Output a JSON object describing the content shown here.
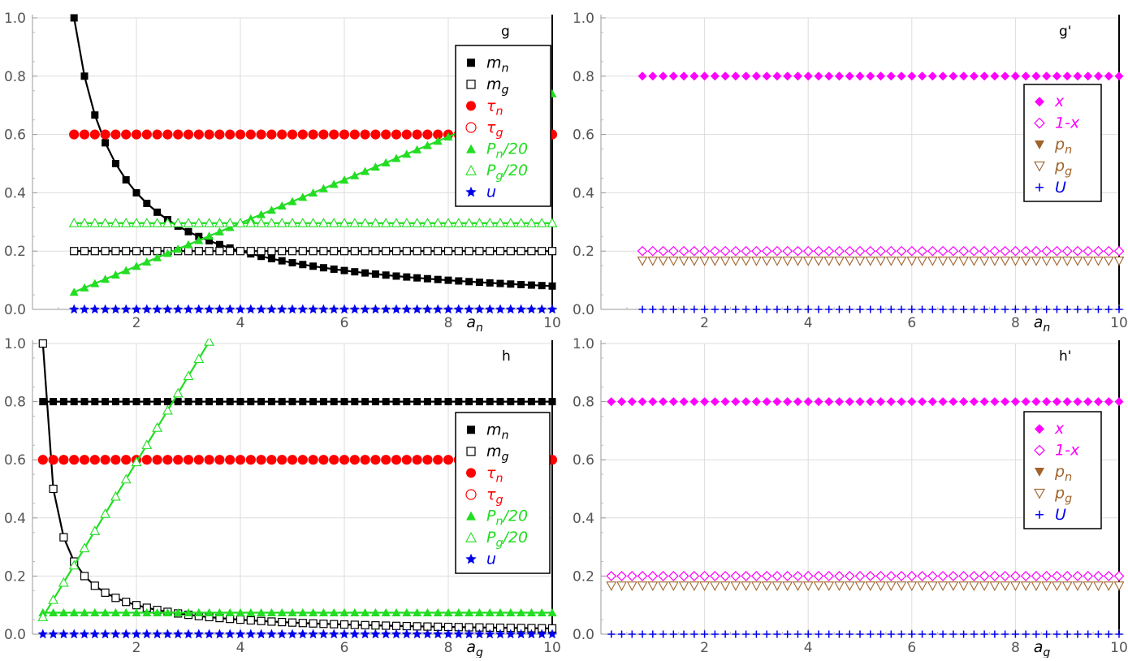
{
  "colors": {
    "black": "#000000",
    "red": "#ff0000",
    "green": "#22dd22",
    "blue": "#0000ee",
    "magenta": "#ff00ff",
    "brown": "#a0632c",
    "grid": "#dddddd"
  },
  "chart_data": [
    {
      "type": "scatter",
      "title": "g",
      "xlabel": "a_n",
      "xlim": [
        0,
        10
      ],
      "ylim": [
        0,
        1
      ],
      "xticks": [
        2,
        4,
        6,
        8,
        10
      ],
      "yticks": [
        0.0,
        0.2,
        0.4,
        0.6,
        0.8,
        1.0
      ],
      "grid": true,
      "legend_position": "top-right",
      "series": [
        {
          "name": "m_n",
          "marker": "filled-square",
          "color": "black",
          "x_start": 0.8,
          "x_end": 10,
          "x_step": 0.2,
          "formula": "0.8/x",
          "line": true
        },
        {
          "name": "m_g",
          "marker": "open-square",
          "color": "black",
          "x_start": 0.8,
          "x_end": 10,
          "x_step": 0.2,
          "formula": "0.2",
          "line": true
        },
        {
          "name": "τ_n",
          "marker": "filled-circle",
          "color": "red",
          "x_start": 0.8,
          "x_end": 10,
          "x_step": 0.2,
          "formula": "0.6"
        },
        {
          "name": "τ_g",
          "marker": "open-circle",
          "color": "red",
          "x_start": 0.8,
          "x_end": 10,
          "x_step": 0.2,
          "formula": "0.6"
        },
        {
          "name": "P_n/20",
          "marker": "filled-triangle",
          "color": "green",
          "x_start": 0.8,
          "x_end": 10,
          "x_step": 0.2,
          "formula": "0.074*x",
          "line": true
        },
        {
          "name": "P_g/20",
          "marker": "open-triangle",
          "color": "green",
          "x_start": 0.8,
          "x_end": 10,
          "x_step": 0.2,
          "formula": "0.296",
          "line": true
        },
        {
          "name": "u",
          "marker": "star",
          "color": "blue",
          "x_start": 0.8,
          "x_end": 10,
          "x_step": 0.2,
          "formula": "0"
        }
      ]
    },
    {
      "type": "scatter",
      "title": "g'",
      "xlabel": "a_n",
      "xlim": [
        0,
        10
      ],
      "ylim": [
        0,
        1
      ],
      "xticks": [
        2,
        4,
        6,
        8,
        10
      ],
      "yticks": [
        0.0,
        0.2,
        0.4,
        0.6,
        0.8,
        1.0
      ],
      "grid": true,
      "legend_position": "top-right",
      "series": [
        {
          "name": "x",
          "marker": "filled-diamond",
          "color": "magenta",
          "x_start": 0.8,
          "x_end": 10,
          "x_step": 0.2,
          "formula": "0.8"
        },
        {
          "name": "1-x",
          "marker": "open-diamond",
          "color": "magenta",
          "x_start": 0.8,
          "x_end": 10,
          "x_step": 0.2,
          "formula": "0.2"
        },
        {
          "name": "p_n",
          "marker": "filled-down-triangle",
          "color": "brown",
          "x_start": 0.8,
          "x_end": 10,
          "x_step": 0.2,
          "formula": "0.167"
        },
        {
          "name": "p_g",
          "marker": "open-down-triangle",
          "color": "brown",
          "x_start": 0.8,
          "x_end": 10,
          "x_step": 0.2,
          "formula": "0.167"
        },
        {
          "name": "U",
          "marker": "plus",
          "color": "blue",
          "x_start": 0.8,
          "x_end": 10,
          "x_step": 0.2,
          "formula": "0"
        }
      ]
    },
    {
      "type": "scatter",
      "title": "h",
      "xlabel": "a_g",
      "xlim": [
        0,
        10
      ],
      "ylim": [
        0,
        1
      ],
      "xticks": [
        2,
        4,
        6,
        8,
        10
      ],
      "yticks": [
        0.0,
        0.2,
        0.4,
        0.6,
        0.8,
        1.0
      ],
      "grid": true,
      "legend_position": "right",
      "series": [
        {
          "name": "m_n",
          "marker": "filled-square",
          "color": "black",
          "x_start": 0.2,
          "x_end": 10,
          "x_step": 0.2,
          "formula": "0.8",
          "line": true
        },
        {
          "name": "m_g",
          "marker": "open-square",
          "color": "black",
          "x_start": 0.2,
          "x_end": 10,
          "x_step": 0.2,
          "formula": "0.2/x",
          "line": true
        },
        {
          "name": "τ_n",
          "marker": "filled-circle",
          "color": "red",
          "x_start": 0.2,
          "x_end": 10,
          "x_step": 0.2,
          "formula": "0.6"
        },
        {
          "name": "τ_g",
          "marker": "open-circle",
          "color": "red",
          "x_start": 0.2,
          "x_end": 10,
          "x_step": 0.2,
          "formula": "0.6"
        },
        {
          "name": "P_n/20",
          "marker": "filled-triangle",
          "color": "green",
          "x_start": 0.2,
          "x_end": 10,
          "x_step": 0.2,
          "formula": "0.074",
          "line": true
        },
        {
          "name": "P_g/20",
          "marker": "open-triangle",
          "color": "green",
          "x_start": 0.2,
          "x_end": 10,
          "x_step": 0.2,
          "formula": "0.296*x",
          "line": true
        },
        {
          "name": "u",
          "marker": "star",
          "color": "blue",
          "x_start": 0.2,
          "x_end": 10,
          "x_step": 0.2,
          "formula": "0"
        }
      ]
    },
    {
      "type": "scatter",
      "title": "h'",
      "xlabel": "a_g",
      "xlim": [
        0,
        10
      ],
      "ylim": [
        0,
        1
      ],
      "xticks": [
        2,
        4,
        6,
        8,
        10
      ],
      "yticks": [
        0.0,
        0.2,
        0.4,
        0.6,
        0.8,
        1.0
      ],
      "grid": true,
      "legend_position": "right",
      "series": [
        {
          "name": "x",
          "marker": "filled-diamond",
          "color": "magenta",
          "x_start": 0.2,
          "x_end": 10,
          "x_step": 0.2,
          "formula": "0.8"
        },
        {
          "name": "1-x",
          "marker": "open-diamond",
          "color": "magenta",
          "x_start": 0.2,
          "x_end": 10,
          "x_step": 0.2,
          "formula": "0.2"
        },
        {
          "name": "p_n",
          "marker": "filled-down-triangle",
          "color": "brown",
          "x_start": 0.2,
          "x_end": 10,
          "x_step": 0.2,
          "formula": "0.167"
        },
        {
          "name": "p_g",
          "marker": "open-down-triangle",
          "color": "brown",
          "x_start": 0.2,
          "x_end": 10,
          "x_step": 0.2,
          "formula": "0.167"
        },
        {
          "name": "U",
          "marker": "plus",
          "color": "blue",
          "x_start": 0.2,
          "x_end": 10,
          "x_step": 0.2,
          "formula": "0"
        }
      ]
    }
  ]
}
